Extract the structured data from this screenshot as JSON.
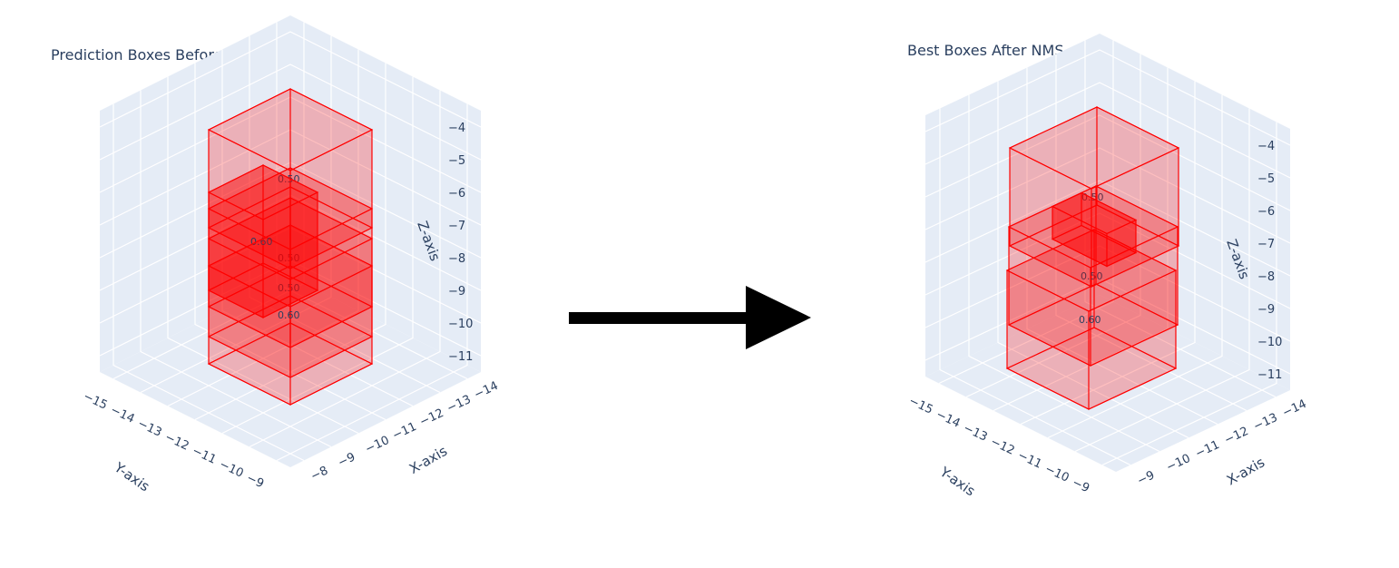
{
  "chart_data": [
    {
      "type": "3d-box",
      "title": "Prediction Boxes Before NMS",
      "xlabel": "X-axis",
      "ylabel": "Y-axis",
      "zlabel": "Z-axis",
      "x_ticks": [
        -8,
        -9,
        -10,
        -11,
        -12,
        -13,
        -14
      ],
      "y_ticks": [
        -9,
        -10,
        -11,
        -12,
        -13,
        -14,
        -15
      ],
      "z_ticks": [
        -4,
        -5,
        -6,
        -7,
        -8,
        -9,
        -10,
        -11
      ],
      "xlim": [
        -14.5,
        -7.5
      ],
      "ylim": [
        -15.5,
        -8.5
      ],
      "zlim": [
        -11.5,
        -3.5
      ],
      "grid": true,
      "boxes": [
        {
          "x": [
            -12.5,
            -9.5
          ],
          "y": [
            -13.5,
            -10.5
          ],
          "z": [
            -9.5,
            -6.5
          ],
          "score": "0.50",
          "opacity": 0.45
        },
        {
          "x": [
            -13.0,
            -10.0
          ],
          "y": [
            -14.0,
            -11.0
          ],
          "z": [
            -7.5,
            -4.5
          ],
          "score": "0.50",
          "opacity": 0.4
        },
        {
          "x": [
            -12.0,
            -9.0
          ],
          "y": [
            -13.0,
            -10.0
          ],
          "z": [
            -10.0,
            -7.0
          ],
          "score": "0.50",
          "opacity": 0.45
        },
        {
          "x": [
            -11.5,
            -9.5
          ],
          "y": [
            -13.5,
            -11.5
          ],
          "z": [
            -9.0,
            -6.0
          ],
          "score": "0.60",
          "opacity": 0.85
        },
        {
          "x": [
            -11.0,
            -8.0
          ],
          "y": [
            -12.0,
            -9.0
          ],
          "z": [
            -10.0,
            -7.0
          ],
          "score": "0.60",
          "opacity": 0.4
        }
      ]
    },
    {
      "type": "3d-box",
      "title": "Best Boxes After NMS",
      "xlabel": "X-axis",
      "ylabel": "Y-axis",
      "zlabel": "Z-axis",
      "x_ticks": [
        -9,
        -10,
        -11,
        -12,
        -13,
        -14
      ],
      "y_ticks": [
        -9,
        -10,
        -11,
        -12,
        -13,
        -14,
        -15
      ],
      "z_ticks": [
        -4,
        -5,
        -6,
        -7,
        -8,
        -9,
        -10,
        -11
      ],
      "xlim": [
        -14.5,
        -8.5
      ],
      "ylim": [
        -15.5,
        -8.5
      ],
      "zlim": [
        -11.5,
        -3.5
      ],
      "grid": true,
      "boxes": [
        {
          "x": [
            -13.0,
            -10.0
          ],
          "y": [
            -14.0,
            -11.0
          ],
          "z": [
            -7.5,
            -4.5
          ],
          "score": "0.50",
          "opacity": 0.4
        },
        {
          "x": [
            -12.5,
            -9.5
          ],
          "y": [
            -13.5,
            -10.5
          ],
          "z": [
            -9.5,
            -6.5
          ],
          "score": "0.50",
          "opacity": 0.4
        },
        {
          "x": [
            -12.0,
            -11.0
          ],
          "y": [
            -13.5,
            -11.5
          ],
          "z": [
            -7.5,
            -6.5
          ],
          "score": "",
          "opacity": 0.9
        },
        {
          "x": [
            -11.5,
            -8.5
          ],
          "y": [
            -12.5,
            -9.5
          ],
          "z": [
            -10.0,
            -7.0
          ],
          "score": "0.60",
          "opacity": 0.4
        }
      ]
    }
  ],
  "colors": {
    "box": "#ff0000",
    "background": "#e5ecf6",
    "grid": "#ffffff",
    "text": "#2a3f5f",
    "arrow": "#000000"
  }
}
